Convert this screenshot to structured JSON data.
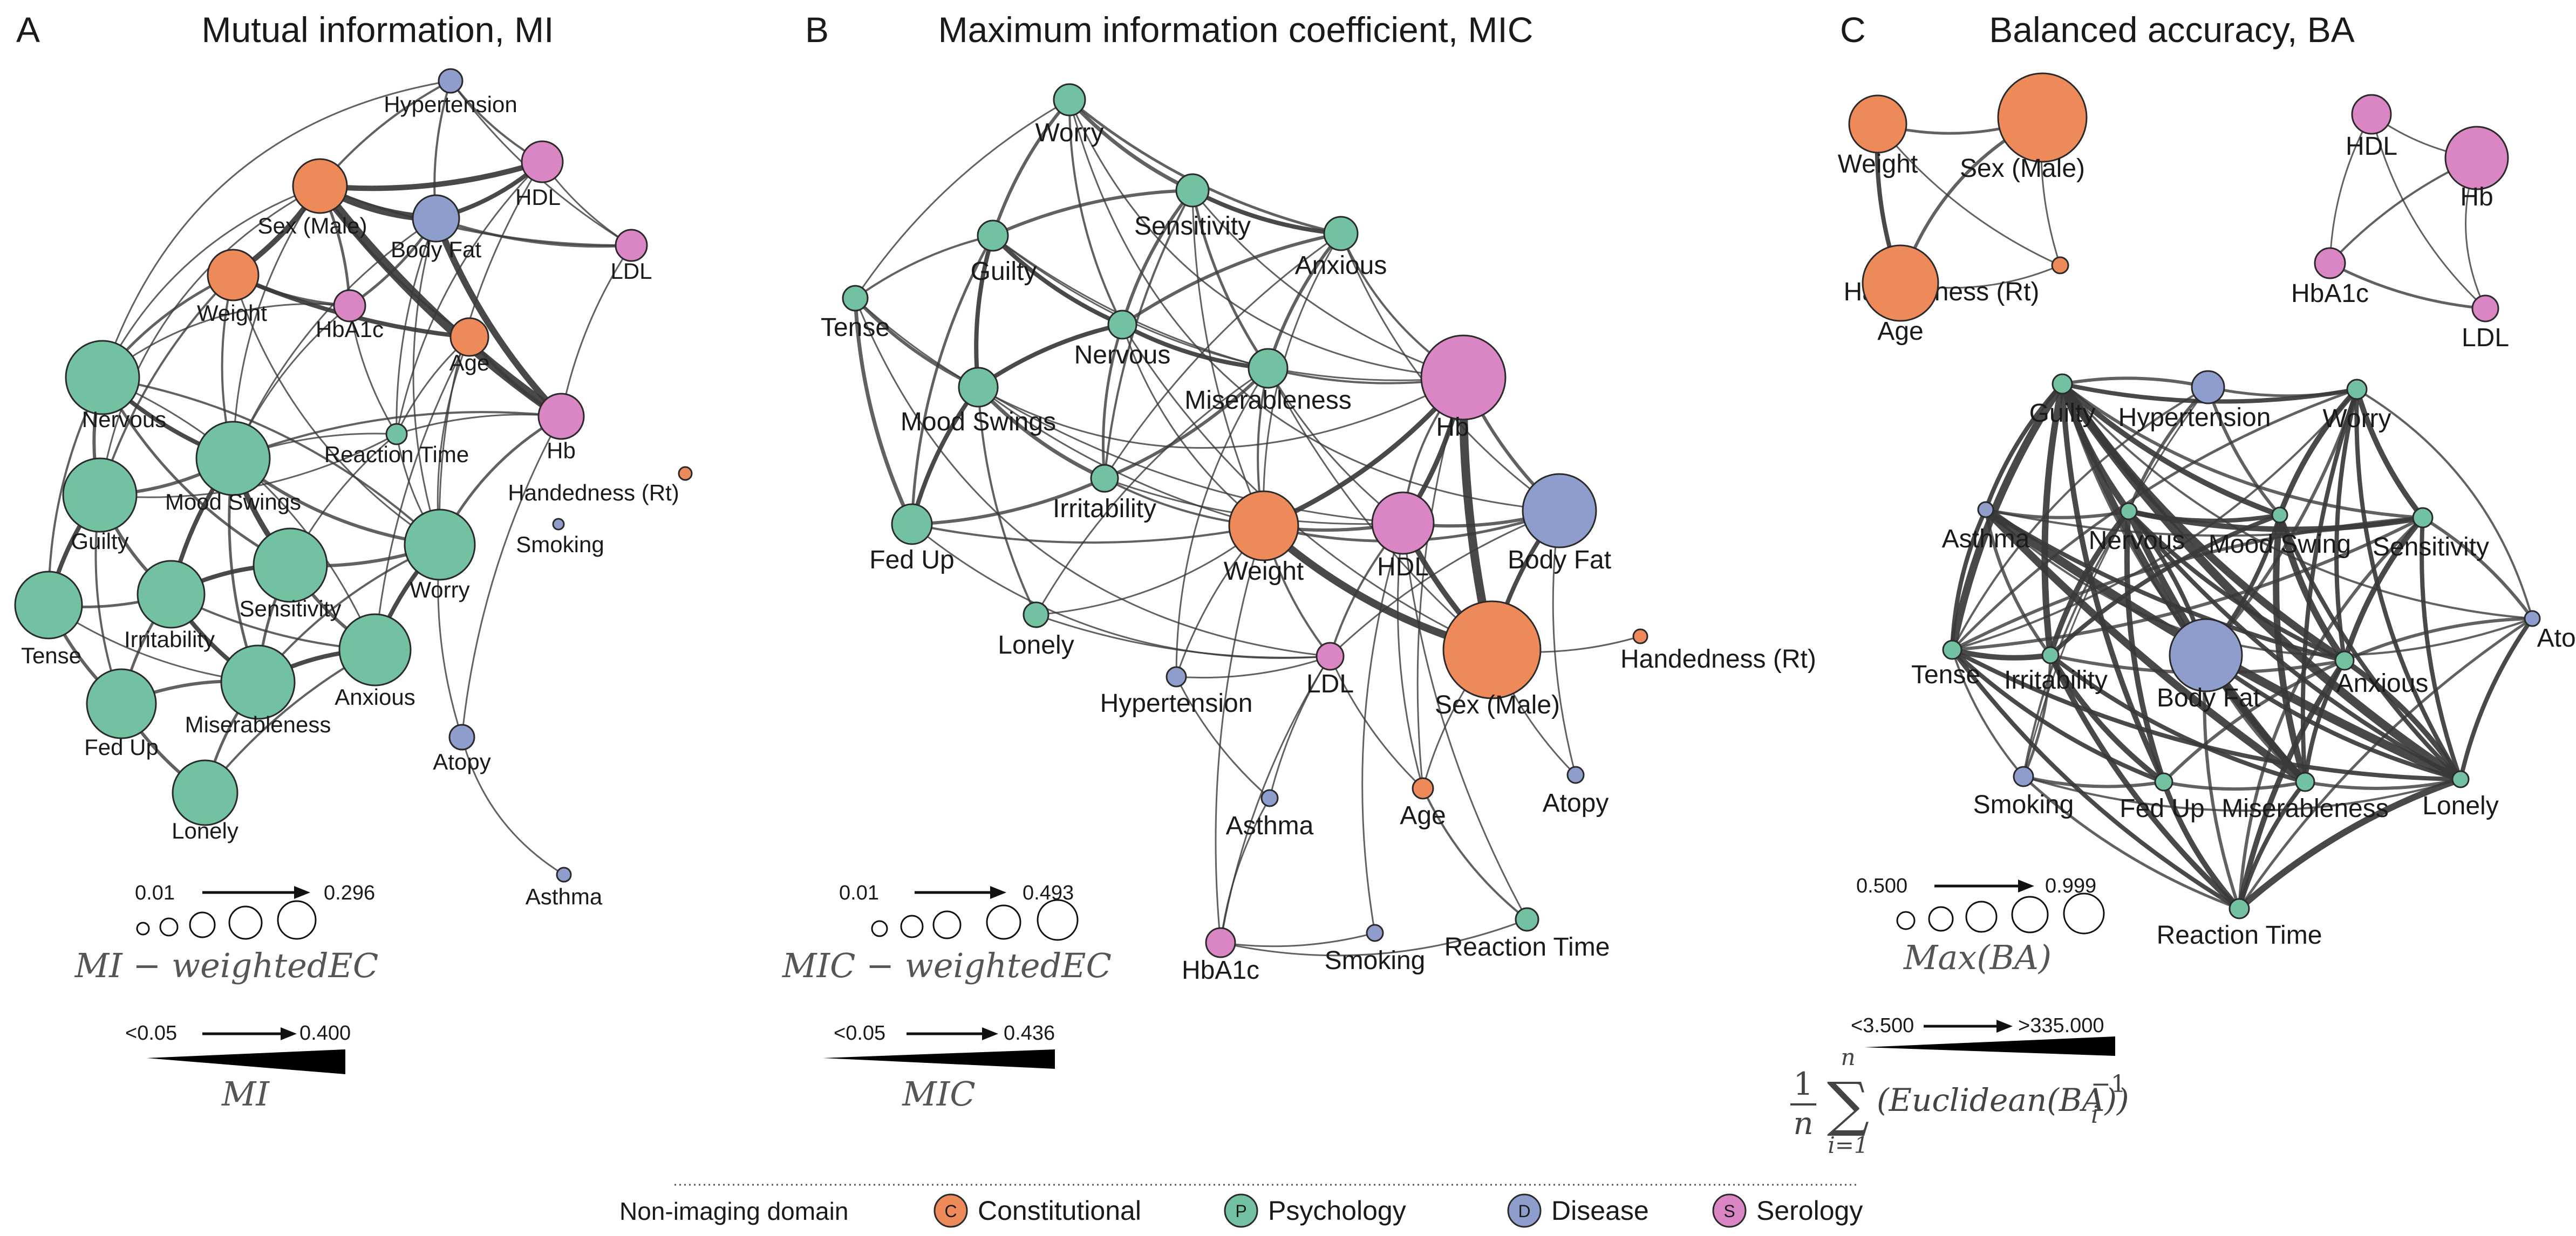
{
  "colors": {
    "Constitutional": "#EE8A5A",
    "Psychology": "#72C2A2",
    "Disease": "#8E9DCB",
    "Serology": "#DB86C4"
  },
  "panels": [
    {
      "letter": "A",
      "title": "Mutual information, MI",
      "node_size_scale": {
        "min": "0.01",
        "max": "0.296",
        "label": "MI − weightedEC"
      },
      "edge_width_scale": {
        "min": "<0.05",
        "max": "0.400",
        "label": "MI"
      },
      "nodes": [
        {
          "label": "Hypertension",
          "domain": "Disease"
        },
        {
          "label": "HDL",
          "domain": "Serology"
        },
        {
          "label": "Sex (Male)",
          "domain": "Constitutional"
        },
        {
          "label": "Body Fat",
          "domain": "Disease"
        },
        {
          "label": "LDL",
          "domain": "Serology"
        },
        {
          "label": "Weight",
          "domain": "Constitutional"
        },
        {
          "label": "HbA1c",
          "domain": "Serology"
        },
        {
          "label": "Age",
          "domain": "Constitutional"
        },
        {
          "label": "Hb",
          "domain": "Serology"
        },
        {
          "label": "Nervous",
          "domain": "Psychology"
        },
        {
          "label": "Reaction Time",
          "domain": "Psychology"
        },
        {
          "label": "Mood Swings",
          "domain": "Psychology"
        },
        {
          "label": "Handedness (Rt)",
          "domain": "Constitutional"
        },
        {
          "label": "Guilty",
          "domain": "Psychology"
        },
        {
          "label": "Smoking",
          "domain": "Disease"
        },
        {
          "label": "Worry",
          "domain": "Psychology"
        },
        {
          "label": "Sensitivity",
          "domain": "Psychology"
        },
        {
          "label": "Irritability",
          "domain": "Psychology"
        },
        {
          "label": "Tense",
          "domain": "Psychology"
        },
        {
          "label": "Anxious",
          "domain": "Psychology"
        },
        {
          "label": "Miserableness",
          "domain": "Psychology"
        },
        {
          "label": "Fed Up",
          "domain": "Psychology"
        },
        {
          "label": "Atopy",
          "domain": "Disease"
        },
        {
          "label": "Lonely",
          "domain": "Psychology"
        },
        {
          "label": "Asthma",
          "domain": "Disease"
        }
      ]
    },
    {
      "letter": "B",
      "title": "Maximum information coefficient, MIC",
      "node_size_scale": {
        "min": "0.01",
        "max": "0.493",
        "label": "MIC − weightedEC"
      },
      "edge_width_scale": {
        "min": "<0.05",
        "max": "0.436",
        "label": "MIC"
      },
      "nodes": [
        {
          "label": "Worry",
          "domain": "Psychology"
        },
        {
          "label": "Sensitivity",
          "domain": "Psychology"
        },
        {
          "label": "Guilty",
          "domain": "Psychology"
        },
        {
          "label": "Anxious",
          "domain": "Psychology"
        },
        {
          "label": "Tense",
          "domain": "Psychology"
        },
        {
          "label": "Nervous",
          "domain": "Psychology"
        },
        {
          "label": "Miserableness",
          "domain": "Psychology"
        },
        {
          "label": "Mood Swings",
          "domain": "Psychology"
        },
        {
          "label": "Hb",
          "domain": "Serology"
        },
        {
          "label": "Irritability",
          "domain": "Psychology"
        },
        {
          "label": "Fed Up",
          "domain": "Psychology"
        },
        {
          "label": "Weight",
          "domain": "Constitutional"
        },
        {
          "label": "HDL",
          "domain": "Serology"
        },
        {
          "label": "Body Fat",
          "domain": "Disease"
        },
        {
          "label": "Lonely",
          "domain": "Psychology"
        },
        {
          "label": "Handedness (Rt)",
          "domain": "Constitutional"
        },
        {
          "label": "Hypertension",
          "domain": "Disease"
        },
        {
          "label": "LDL",
          "domain": "Serology"
        },
        {
          "label": "Sex (Male)",
          "domain": "Constitutional"
        },
        {
          "label": "Atopy",
          "domain": "Disease"
        },
        {
          "label": "Age",
          "domain": "Constitutional"
        },
        {
          "label": "Asthma",
          "domain": "Disease"
        },
        {
          "label": "Reaction Time",
          "domain": "Psychology"
        },
        {
          "label": "HbA1c",
          "domain": "Serology"
        },
        {
          "label": "Smoking",
          "domain": "Disease"
        }
      ]
    },
    {
      "letter": "C",
      "title": "Balanced accuracy, BA",
      "node_size_scale": {
        "min": "0.500",
        "max": "0.999",
        "label": "Max(BA)"
      },
      "edge_width_scale": {
        "min": "<3.500",
        "max": ">335.000",
        "formula": "(Euclidean(BA))",
        "sup": "−1",
        "sub": "i",
        "sum_top": "n",
        "sum_bottom": "i=1",
        "frac_num": "1",
        "frac_den": "n"
      },
      "nodes": [
        {
          "label": "Weight",
          "domain": "Constitutional"
        },
        {
          "label": "Sex (Male)",
          "domain": "Constitutional"
        },
        {
          "label": "Handedness (Rt)",
          "domain": "Constitutional"
        },
        {
          "label": "Age",
          "domain": "Constitutional"
        },
        {
          "label": "HDL",
          "domain": "Serology"
        },
        {
          "label": "Hb",
          "domain": "Serology"
        },
        {
          "label": "HbA1c",
          "domain": "Serology"
        },
        {
          "label": "LDL",
          "domain": "Serology"
        },
        {
          "label": "Guilty",
          "domain": "Psychology"
        },
        {
          "label": "Hypertension",
          "domain": "Disease"
        },
        {
          "label": "Worry",
          "domain": "Psychology"
        },
        {
          "label": "Asthma",
          "domain": "Disease"
        },
        {
          "label": "Nervous",
          "domain": "Psychology"
        },
        {
          "label": "Mood Swing",
          "domain": "Psychology"
        },
        {
          "label": "Sensitivity",
          "domain": "Psychology"
        },
        {
          "label": "Atopy",
          "domain": "Disease"
        },
        {
          "label": "Tense",
          "domain": "Psychology"
        },
        {
          "label": "Irritability",
          "domain": "Psychology"
        },
        {
          "label": "Body Fat",
          "domain": "Disease"
        },
        {
          "label": "Anxious",
          "domain": "Psychology"
        },
        {
          "label": "Smoking",
          "domain": "Disease"
        },
        {
          "label": "Fed Up",
          "domain": "Psychology"
        },
        {
          "label": "Miserableness",
          "domain": "Psychology"
        },
        {
          "label": "Lonely",
          "domain": "Psychology"
        },
        {
          "label": "Reaction Time",
          "domain": "Psychology"
        }
      ]
    }
  ],
  "legend": {
    "title": "Non-imaging domain",
    "items": [
      {
        "letter": "C",
        "label": "Constitutional"
      },
      {
        "letter": "P",
        "label": "Psychology"
      },
      {
        "letter": "D",
        "label": "Disease"
      },
      {
        "letter": "S",
        "label": "Serology"
      }
    ]
  }
}
